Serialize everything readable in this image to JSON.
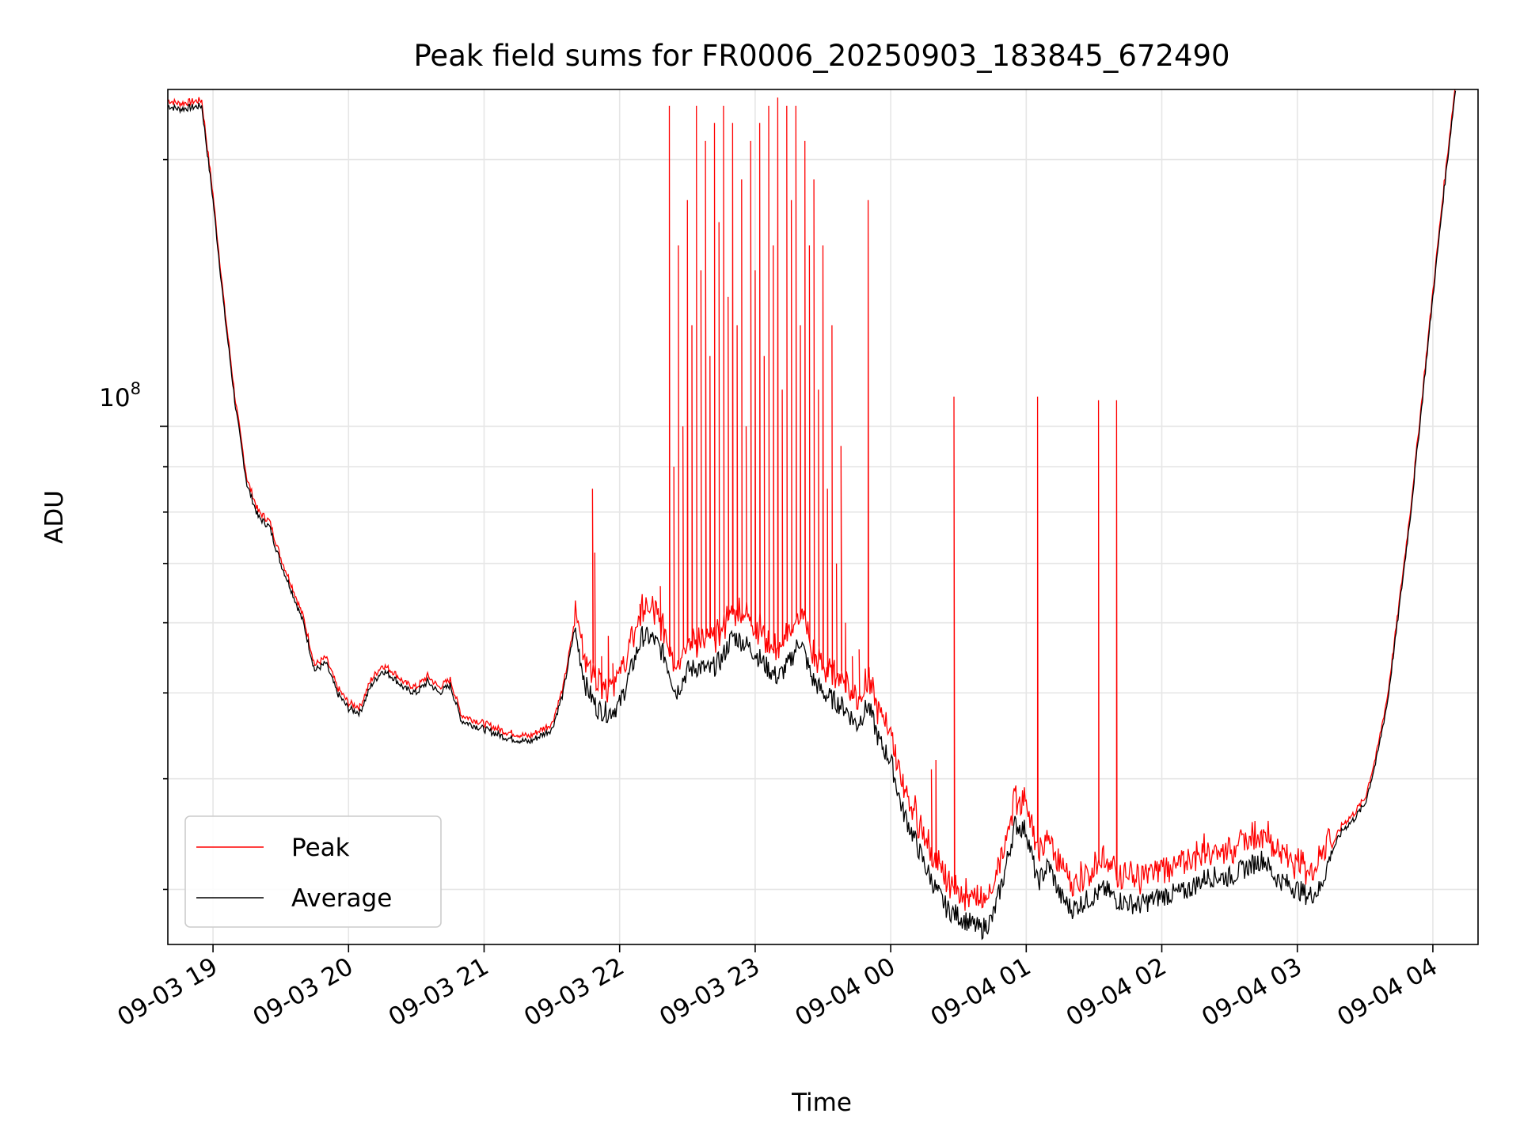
{
  "chart_data": {
    "type": "line",
    "title": "Peak field sums for FR0006_20250903_183845_672490",
    "xlabel": "Time",
    "ylabel": "ADU",
    "x_tick_labels": [
      "09-03 19",
      "09-03 20",
      "09-03 21",
      "09-03 22",
      "09-03 23",
      "09-04 00",
      "09-04 01",
      "09-04 02",
      "09-04 03",
      "09-04 04"
    ],
    "y_tick_label": {
      "base": "10",
      "exponent": "8"
    },
    "yscale": "log",
    "xlim": [
      "2025-09-03 18:40",
      "2025-09-04 04:20"
    ],
    "ylim": [
      26000000.0,
      240000000.0
    ],
    "grid": true,
    "legend": {
      "position": "lower-left",
      "entries": [
        {
          "label": "Peak",
          "color": "#ff0000"
        },
        {
          "label": "Average",
          "color": "#000000"
        }
      ]
    },
    "series": [
      {
        "name": "Average",
        "color": "#000000",
        "points": [
          [
            "2025-09-03 18:40",
            230000000.0
          ],
          [
            "2025-09-03 18:45",
            228000000.0
          ],
          [
            "2025-09-03 18:55",
            230000000.0
          ],
          [
            "2025-09-03 19:00",
            180000000.0
          ],
          [
            "2025-09-03 19:05",
            135000000.0
          ],
          [
            "2025-09-03 19:10",
            105000000.0
          ],
          [
            "2025-09-03 19:15",
            86000000.0
          ],
          [
            "2025-09-03 19:20",
            79000000.0
          ],
          [
            "2025-09-03 19:25",
            77000000.0
          ],
          [
            "2025-09-03 19:30",
            70000000.0
          ],
          [
            "2025-09-03 19:35",
            65000000.0
          ],
          [
            "2025-09-03 19:40",
            60000000.0
          ],
          [
            "2025-09-03 19:45",
            53000000.0
          ],
          [
            "2025-09-03 19:50",
            54000000.0
          ],
          [
            "2025-09-03 19:55",
            50000000.0
          ],
          [
            "2025-09-03 20:00",
            48000000.0
          ],
          [
            "2025-09-03 20:05",
            47500000.0
          ],
          [
            "2025-09-03 20:10",
            51000000.0
          ],
          [
            "2025-09-03 20:15",
            53000000.0
          ],
          [
            "2025-09-03 20:20",
            52000000.0
          ],
          [
            "2025-09-03 20:25",
            50500000.0
          ],
          [
            "2025-09-03 20:30",
            50000000.0
          ],
          [
            "2025-09-03 20:35",
            51500000.0
          ],
          [
            "2025-09-03 20:40",
            50000000.0
          ],
          [
            "2025-09-03 20:45",
            51000000.0
          ],
          [
            "2025-09-03 20:50",
            46500000.0
          ],
          [
            "2025-09-03 21:00",
            45500000.0
          ],
          [
            "2025-09-03 21:10",
            44500000.0
          ],
          [
            "2025-09-03 21:20",
            44000000.0
          ],
          [
            "2025-09-03 21:30",
            45500000.0
          ],
          [
            "2025-09-03 21:35",
            50000000.0
          ],
          [
            "2025-09-03 21:40",
            59000000.0
          ],
          [
            "2025-09-03 21:45",
            51000000.0
          ],
          [
            "2025-09-03 21:50",
            48000000.0
          ],
          [
            "2025-09-03 21:55",
            47500000.0
          ],
          [
            "2025-09-03 22:00",
            48500000.0
          ],
          [
            "2025-09-03 22:10",
            58000000.0
          ],
          [
            "2025-09-03 22:15",
            57500000.0
          ],
          [
            "2025-09-03 22:20",
            55000000.0
          ],
          [
            "2025-09-03 22:25",
            50000000.0
          ],
          [
            "2025-09-03 22:30",
            53000000.0
          ],
          [
            "2025-09-03 22:35",
            53500000.0
          ],
          [
            "2025-09-03 22:40",
            53000000.0
          ],
          [
            "2025-09-03 22:45",
            54500000.0
          ],
          [
            "2025-09-03 22:50",
            58000000.0
          ],
          [
            "2025-09-03 22:55",
            57000000.0
          ],
          [
            "2025-09-03 23:00",
            55500000.0
          ],
          [
            "2025-09-03 23:05",
            53500000.0
          ],
          [
            "2025-09-03 23:10",
            52000000.0
          ],
          [
            "2025-09-03 23:15",
            54000000.0
          ],
          [
            "2025-09-03 23:20",
            57500000.0
          ],
          [
            "2025-09-03 23:25",
            52000000.0
          ],
          [
            "2025-09-03 23:30",
            50000000.0
          ],
          [
            "2025-09-03 23:40",
            48000000.0
          ],
          [
            "2025-09-03 23:45",
            46000000.0
          ],
          [
            "2025-09-03 23:50",
            48500000.0
          ],
          [
            "2025-09-03 23:55",
            44000000.0
          ],
          [
            "2025-09-04 00:00",
            42000000.0
          ],
          [
            "2025-09-04 00:05",
            37000000.0
          ],
          [
            "2025-09-04 00:10",
            34500000.0
          ],
          [
            "2025-09-04 00:15",
            32000000.0
          ],
          [
            "2025-09-04 00:20",
            30000000.0
          ],
          [
            "2025-09-04 00:25",
            28500000.0
          ],
          [
            "2025-09-04 00:30",
            28000000.0
          ],
          [
            "2025-09-04 00:35",
            27500000.0
          ],
          [
            "2025-09-04 00:40",
            27000000.0
          ],
          [
            "2025-09-04 00:45",
            27800000.0
          ],
          [
            "2025-09-04 00:50",
            31000000.0
          ],
          [
            "2025-09-04 00:55",
            35500000.0
          ],
          [
            "2025-09-04 01:00",
            35000000.0
          ],
          [
            "2025-09-04 01:05",
            30500000.0
          ],
          [
            "2025-09-04 01:10",
            32000000.0
          ],
          [
            "2025-09-04 01:15",
            29500000.0
          ],
          [
            "2025-09-04 01:20",
            28500000.0
          ],
          [
            "2025-09-04 01:25",
            29000000.0
          ],
          [
            "2025-09-04 01:30",
            29500000.0
          ],
          [
            "2025-09-04 01:35",
            30000000.0
          ],
          [
            "2025-09-04 01:40",
            29200000.0
          ],
          [
            "2025-09-04 01:50",
            28800000.0
          ],
          [
            "2025-09-04 02:00",
            29500000.0
          ],
          [
            "2025-09-04 02:10",
            29800000.0
          ],
          [
            "2025-09-04 02:20",
            31000000.0
          ],
          [
            "2025-09-04 02:30",
            31000000.0
          ],
          [
            "2025-09-04 02:40",
            32000000.0
          ],
          [
            "2025-09-04 02:45",
            32500000.0
          ],
          [
            "2025-09-04 02:50",
            31000000.0
          ],
          [
            "2025-09-04 03:00",
            30000000.0
          ],
          [
            "2025-09-04 03:05",
            29500000.0
          ],
          [
            "2025-09-04 03:10",
            30000000.0
          ],
          [
            "2025-09-04 03:15",
            33000000.0
          ],
          [
            "2025-09-04 03:20",
            35000000.0
          ],
          [
            "2025-09-04 03:25",
            36000000.0
          ],
          [
            "2025-09-04 03:30",
            37500000.0
          ],
          [
            "2025-09-04 03:35",
            42000000.0
          ],
          [
            "2025-09-04 03:40",
            49000000.0
          ],
          [
            "2025-09-04 03:45",
            62000000.0
          ],
          [
            "2025-09-04 03:50",
            79000000.0
          ],
          [
            "2025-09-04 03:55",
            105000000.0
          ],
          [
            "2025-09-04 04:00",
            140000000.0
          ],
          [
            "2025-09-04 04:05",
            185000000.0
          ],
          [
            "2025-09-04 04:10",
            240000000.0
          ]
        ]
      },
      {
        "name": "Peak",
        "color": "#ff0000",
        "baseline_ratio": 1.05,
        "spikes": [
          [
            "2025-09-03 21:48",
            85000000.0
          ],
          [
            "2025-09-03 21:49",
            72000000.0
          ],
          [
            "2025-09-03 21:52",
            55000000.0
          ],
          [
            "2025-09-03 21:55",
            58000000.0
          ],
          [
            "2025-09-03 21:57",
            54000000.0
          ],
          [
            "2025-09-03 22:00",
            53000000.0
          ],
          [
            "2025-09-03 22:09",
            63000000.0
          ],
          [
            "2025-09-03 22:18",
            66000000.0
          ],
          [
            "2025-09-03 22:22",
            230000000.0
          ],
          [
            "2025-09-03 22:24",
            90000000.0
          ],
          [
            "2025-09-03 22:26",
            160000000.0
          ],
          [
            "2025-09-03 22:28",
            100000000.0
          ],
          [
            "2025-09-03 22:30",
            180000000.0
          ],
          [
            "2025-09-03 22:32",
            130000000.0
          ],
          [
            "2025-09-03 22:34",
            230000000.0
          ],
          [
            "2025-09-03 22:36",
            150000000.0
          ],
          [
            "2025-09-03 22:38",
            210000000.0
          ],
          [
            "2025-09-03 22:40",
            120000000.0
          ],
          [
            "2025-09-03 22:42",
            220000000.0
          ],
          [
            "2025-09-03 22:44",
            170000000.0
          ],
          [
            "2025-09-03 22:46",
            230000000.0
          ],
          [
            "2025-09-03 22:48",
            140000000.0
          ],
          [
            "2025-09-03 22:50",
            220000000.0
          ],
          [
            "2025-09-03 22:52",
            130000000.0
          ],
          [
            "2025-09-03 22:54",
            190000000.0
          ],
          [
            "2025-09-03 22:56",
            100000000.0
          ],
          [
            "2025-09-03 22:58",
            210000000.0
          ],
          [
            "2025-09-03 23:00",
            150000000.0
          ],
          [
            "2025-09-03 23:02",
            220000000.0
          ],
          [
            "2025-09-03 23:04",
            120000000.0
          ],
          [
            "2025-09-03 23:06",
            230000000.0
          ],
          [
            "2025-09-03 23:08",
            160000000.0
          ],
          [
            "2025-09-03 23:10",
            235000000.0
          ],
          [
            "2025-09-03 23:12",
            110000000.0
          ],
          [
            "2025-09-03 23:14",
            230000000.0
          ],
          [
            "2025-09-03 23:16",
            180000000.0
          ],
          [
            "2025-09-03 23:18",
            230000000.0
          ],
          [
            "2025-09-03 23:20",
            130000000.0
          ],
          [
            "2025-09-03 23:22",
            210000000.0
          ],
          [
            "2025-09-03 23:24",
            160000000.0
          ],
          [
            "2025-09-03 23:26",
            190000000.0
          ],
          [
            "2025-09-03 23:28",
            110000000.0
          ],
          [
            "2025-09-03 23:30",
            160000000.0
          ],
          [
            "2025-09-03 23:32",
            85000000.0
          ],
          [
            "2025-09-03 23:34",
            130000000.0
          ],
          [
            "2025-09-03 23:36",
            70000000.0
          ],
          [
            "2025-09-03 23:38",
            95000000.0
          ],
          [
            "2025-09-03 23:40",
            60000000.0
          ],
          [
            "2025-09-03 23:43",
            55000000.0
          ],
          [
            "2025-09-03 23:46",
            56000000.0
          ],
          [
            "2025-09-03 23:50",
            180000000.0
          ],
          [
            "2025-09-04 00:18",
            41000000.0
          ],
          [
            "2025-09-04 00:20",
            42000000.0
          ],
          [
            "2025-09-04 00:28",
            108000000.0
          ],
          [
            "2025-09-04 01:05",
            108000000.0
          ],
          [
            "2025-09-04 01:32",
            107000000.0
          ],
          [
            "2025-09-04 01:40",
            107000000.0
          ],
          [
            "2025-09-04 02:58",
            32000000.0
          ]
        ]
      }
    ]
  }
}
